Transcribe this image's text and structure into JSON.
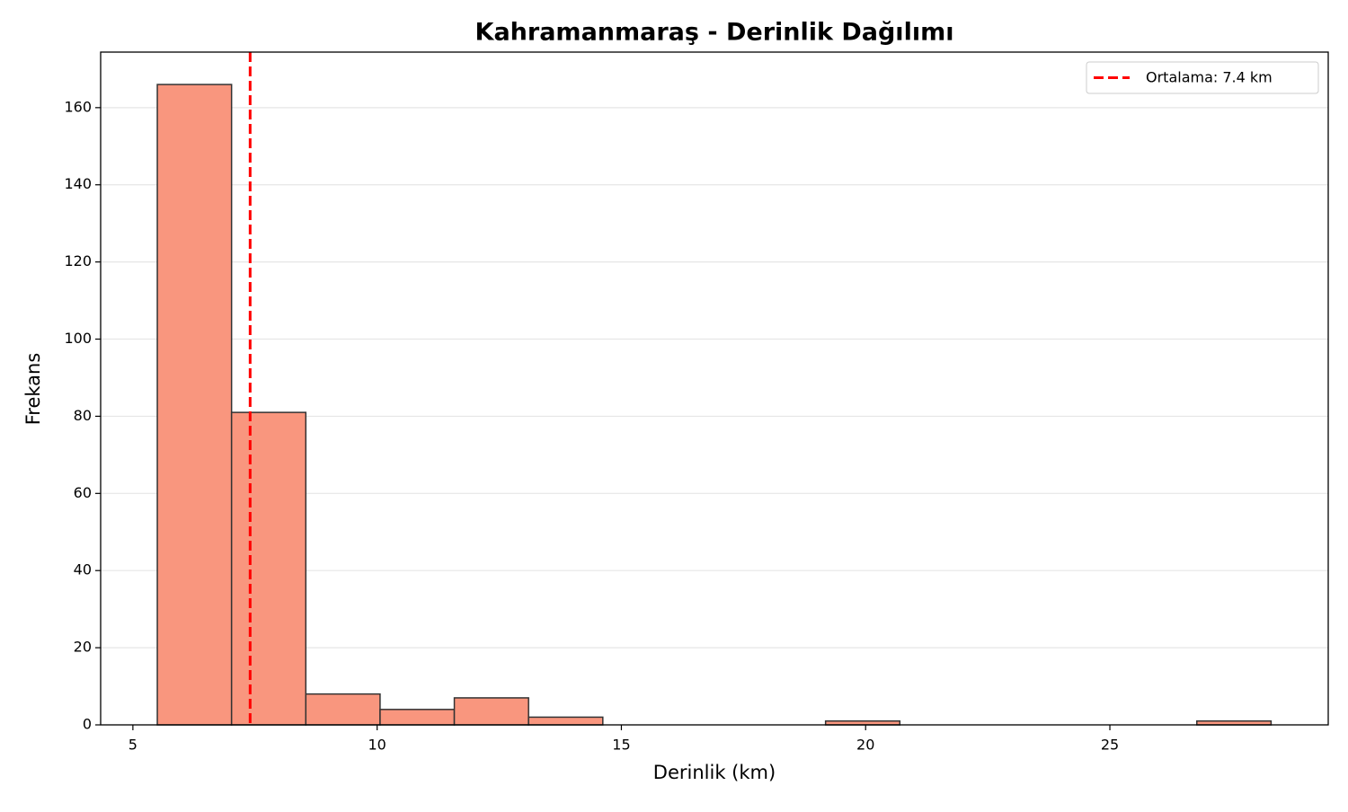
{
  "chart_data": {
    "type": "histogram",
    "title": "Kahramanmaraş - Derinlik Dağılımı",
    "xlabel": "Derinlik (km)",
    "ylabel": "Frekans",
    "bins": [
      5.5,
      7.02,
      8.54,
      10.06,
      11.58,
      13.1,
      14.62,
      16.14,
      17.66,
      19.18,
      20.7,
      22.22,
      23.74,
      25.26,
      26.78,
      28.3
    ],
    "values": [
      166,
      81,
      8,
      4,
      7,
      2,
      0,
      0,
      0,
      1,
      0,
      0,
      0,
      0,
      1
    ],
    "color": "#f9967e",
    "edgecolor": "#333333",
    "xlim": [
      4.34,
      29.47
    ],
    "xticks": [
      5,
      10,
      15,
      20,
      25
    ],
    "ylim": [
      0,
      174.4
    ],
    "yticks": [
      0,
      20,
      40,
      60,
      80,
      100,
      120,
      140,
      160
    ],
    "grid": "y",
    "mean_line": {
      "value": 7.4,
      "label": "Ortalama: 7.4 km",
      "color": "#ff0000"
    },
    "legend": "upper right"
  }
}
